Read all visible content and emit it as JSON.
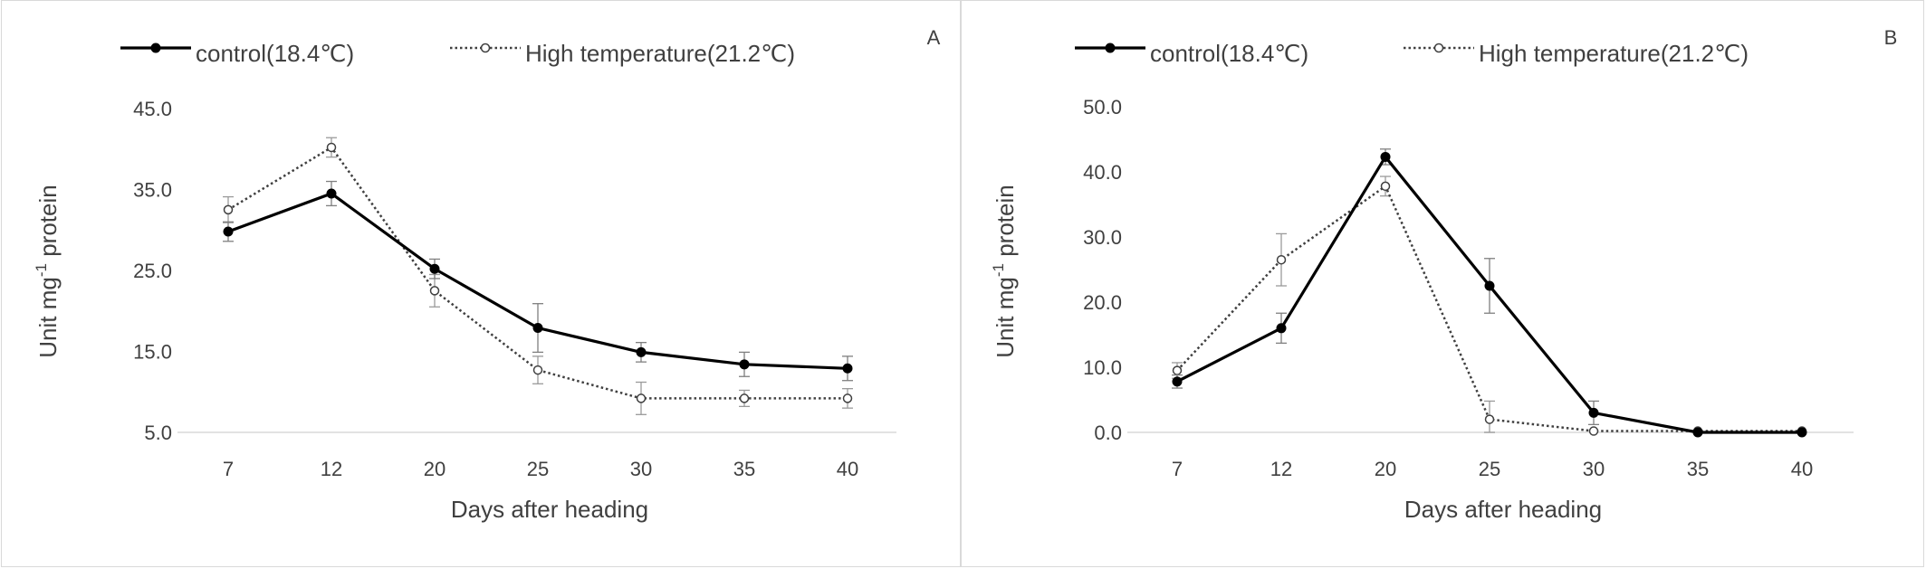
{
  "chart_data": [
    {
      "type": "line",
      "panel_label": "A",
      "categories": [
        "7",
        "12",
        "20",
        "25",
        "30",
        "35",
        "40"
      ],
      "ylabel_main": "Unit mg",
      "ylabel_sup": "-1",
      "ylabel_end": " protein",
      "xlabel": "Days after heading",
      "ylim": [
        5.0,
        45.0
      ],
      "yticks": [
        5.0,
        15.0,
        25.0,
        35.0,
        45.0
      ],
      "ytick_labels": [
        "5.0",
        "15.0",
        "25.0",
        "35.0",
        "45.0"
      ],
      "legend_position": "top",
      "series": [
        {
          "name": "control(18.4℃)",
          "style": "solid",
          "marker": "filled-circle",
          "color": "#000000",
          "values": [
            29.8,
            34.5,
            25.2,
            17.9,
            14.9,
            13.4,
            12.9
          ],
          "errors": [
            1.2,
            1.5,
            1.2,
            3.0,
            1.2,
            1.5,
            1.5
          ]
        },
        {
          "name": "High temperature(21.2℃)",
          "style": "dotted",
          "marker": "open-circle",
          "color": "#404040",
          "values": [
            32.5,
            40.2,
            22.5,
            12.7,
            9.2,
            9.2,
            9.2
          ],
          "errors": [
            1.6,
            1.2,
            2.0,
            1.7,
            2.0,
            1.0,
            1.2
          ]
        }
      ]
    },
    {
      "type": "line",
      "panel_label": "B",
      "categories": [
        "7",
        "12",
        "20",
        "25",
        "30",
        "35",
        "40"
      ],
      "ylabel_main": "Unit mg",
      "ylabel_sup": "-1",
      "ylabel_end": " protein",
      "xlabel": "Days after heading",
      "ylim": [
        0.0,
        50.0
      ],
      "yticks": [
        0.0,
        10.0,
        20.0,
        30.0,
        40.0,
        50.0
      ],
      "ytick_labels": [
        "0.0",
        "10.0",
        "20.0",
        "30.0",
        "40.0",
        "50.0"
      ],
      "legend_position": "top",
      "series": [
        {
          "name": "control(18.4℃)",
          "style": "solid",
          "marker": "filled-circle",
          "color": "#000000",
          "values": [
            7.8,
            16.0,
            42.3,
            22.5,
            3.0,
            0.0,
            0.0
          ],
          "errors": [
            1.0,
            2.3,
            1.2,
            4.2,
            1.8,
            0,
            0
          ]
        },
        {
          "name": "High temperature(21.2℃)",
          "style": "dotted",
          "marker": "open-circle",
          "color": "#404040",
          "values": [
            9.5,
            26.5,
            37.8,
            2.0,
            0.2,
            0.2,
            0.2
          ],
          "errors": [
            1.2,
            4.0,
            1.5,
            2.8,
            0,
            0,
            0
          ]
        }
      ]
    }
  ]
}
